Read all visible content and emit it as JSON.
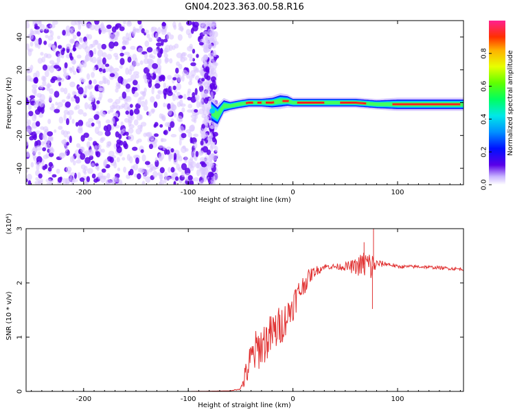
{
  "title": "GN04.2023.363.00.58.R16",
  "colors": {
    "axes": "#000000",
    "snr_line": "#e03030",
    "scatter_low": "#d8c4ff",
    "scatter_high": "#5a00e8",
    "band": [
      "#00c8ff",
      "#40ff60",
      "#ff2020"
    ]
  },
  "chart_data": [
    {
      "id": "spectrogram",
      "type": "heatmap",
      "title": "",
      "xlabel": "Height of straight line (km)",
      "ylabel": "Frequency (Hz)",
      "xlim": [
        -255,
        163
      ],
      "ylim": [
        -50,
        50
      ],
      "xticks": [
        -200,
        -100,
        0,
        100
      ],
      "xtick_labels": [
        "-200",
        "-100",
        "0",
        "100"
      ],
      "yticks": [
        -40,
        -20,
        0,
        20,
        40
      ],
      "ytick_labels": [
        "-40",
        "-20",
        "0",
        "20",
        "40"
      ],
      "noise_region_x": [
        -255,
        -75
      ],
      "signal_track": {
        "x": [
          -78,
          -72,
          -66,
          -60,
          -52,
          -42,
          -30,
          -20,
          -12,
          -5,
          0,
          10,
          20,
          40,
          60,
          80,
          100,
          120,
          140,
          163
        ],
        "freq": [
          -5,
          -8,
          -2,
          -2,
          -1,
          0,
          0,
          0,
          1,
          1,
          0,
          0,
          0,
          0,
          0,
          -1,
          -1,
          -1,
          -1,
          -1
        ],
        "width": [
          10,
          9,
          6,
          4,
          4,
          4,
          4,
          5,
          6,
          5,
          4,
          4,
          4,
          4,
          4,
          4,
          5,
          5,
          5,
          5
        ]
      },
      "colorbar": {
        "label": "Normalized spectral amplitude",
        "range": [
          0,
          1
        ],
        "ticks": [
          0.0,
          0.2,
          0.4,
          0.6,
          0.8
        ],
        "tick_labels": [
          "0.0",
          "0.2",
          "0.4",
          "0.6",
          "0.8"
        ]
      }
    },
    {
      "id": "snr",
      "type": "line",
      "title": "",
      "xlabel": "Height of straight line (km)",
      "ylabel": "SNR (10 * v/v)",
      "scale_label": "(x10⁴)",
      "xlim": [
        -255,
        163
      ],
      "ylim": [
        0,
        3
      ],
      "xticks": [
        -200,
        -100,
        0,
        100
      ],
      "xtick_labels": [
        "-200",
        "-100",
        "0",
        "100"
      ],
      "yticks": [
        0,
        1,
        2,
        3
      ],
      "ytick_labels": [
        "0",
        "1",
        "2",
        "3"
      ],
      "series": [
        {
          "x": [
            -255,
            -100,
            -60,
            -50,
            -45,
            -40,
            -35,
            -30,
            -25,
            -20,
            -15,
            -10,
            -5,
            0,
            5,
            10,
            15,
            20,
            25,
            30,
            40,
            50,
            60,
            70,
            75,
            80,
            90,
            100,
            120,
            140,
            163
          ],
          "y": [
            0.0,
            0.0,
            0.01,
            0.05,
            0.3,
            0.6,
            0.75,
            0.85,
            0.95,
            1.05,
            1.15,
            1.25,
            1.4,
            1.6,
            1.8,
            1.95,
            2.1,
            2.2,
            2.25,
            2.3,
            2.3,
            2.3,
            2.3,
            2.35,
            2.3,
            2.35,
            2.35,
            2.3,
            2.3,
            2.28,
            2.25
          ],
          "noise": [
            0.0,
            0.0,
            0.0,
            0.02,
            0.25,
            0.35,
            0.4,
            0.4,
            0.4,
            0.4,
            0.4,
            0.35,
            0.3,
            0.3,
            0.25,
            0.2,
            0.15,
            0.1,
            0.08,
            0.05,
            0.05,
            0.08,
            0.15,
            0.3,
            0.3,
            0.08,
            0.04,
            0.03,
            0.03,
            0.03,
            0.03
          ],
          "spikes": [
            {
              "x": 77,
              "y": 3.0
            },
            {
              "x": 76,
              "y": 1.52
            },
            {
              "x": 68,
              "y": 2.75
            }
          ]
        }
      ]
    }
  ]
}
